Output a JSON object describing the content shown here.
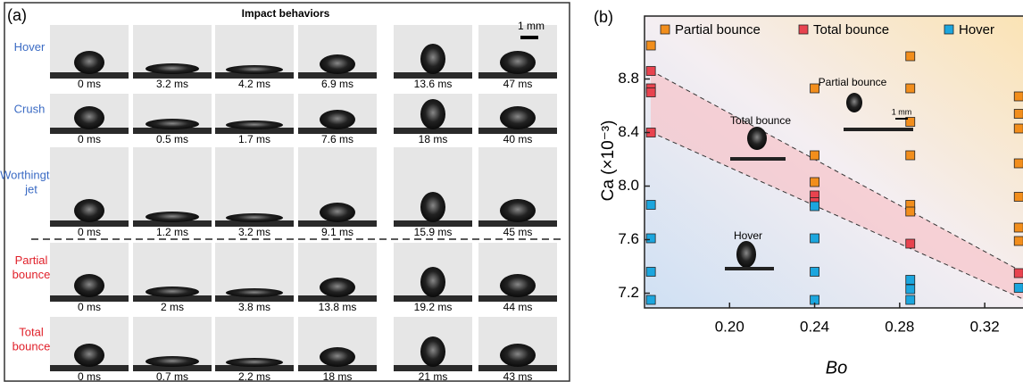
{
  "panel_a": {
    "label": "(a)",
    "title": "Impact behaviors",
    "scale": "1 mm",
    "rows": [
      {
        "label": [
          "Hover"
        ],
        "color": "#3b6bc4",
        "times": [
          "0 ms",
          "3.2 ms",
          "4.2 ms",
          "6.9 ms",
          "13.6 ms",
          "47 ms"
        ]
      },
      {
        "label": [
          "Crush"
        ],
        "color": "#3b6bc4",
        "times": [
          "0 ms",
          "0.5 ms",
          "1.7 ms",
          "7.6 ms",
          "18 ms",
          "40 ms"
        ]
      },
      {
        "label": [
          "Worthington",
          "jet"
        ],
        "color": "#3b6bc4",
        "times": [
          "0 ms",
          "1.2 ms",
          "3.2 ms",
          "9.1 ms",
          "15.9 ms",
          "45 ms"
        ]
      },
      {
        "label": [
          "Partial",
          "bounce"
        ],
        "color": "#e0202a",
        "times": [
          "0 ms",
          "2 ms",
          "3.8 ms",
          "13.8 ms",
          "19.2 ms",
          "44 ms"
        ]
      },
      {
        "label": [
          "Total",
          "bounce"
        ],
        "color": "#e0202a",
        "times": [
          "0 ms",
          "0.7 ms",
          "2.2 ms",
          "18 ms",
          "21 ms",
          "43 ms"
        ]
      }
    ]
  },
  "chart_data": {
    "type": "scatter",
    "label": "(b)",
    "x_label": "Bo",
    "y_label": "Ca (×10⁻³)",
    "xlim": [
      0.16,
      0.338
    ],
    "ylim": [
      7.09,
      9.27
    ],
    "xticks": [
      {
        "value": 0.2,
        "label": "0.20"
      },
      0.24,
      0.28,
      0.32
    ],
    "yticks": [
      7.2,
      7.6,
      {
        "value": 8,
        "label": "8.0"
      },
      8.4,
      8.8
    ],
    "legend": "top",
    "annotations": [
      "Partial bounce",
      "1 mm",
      "Total bounce",
      "Hover"
    ],
    "series": [
      {
        "name": "Partial bounce",
        "color": "#f28e1c",
        "x": [
          0.163,
          0.24,
          0.24,
          0.24,
          0.285,
          0.285,
          0.285,
          0.285,
          0.285,
          0.285,
          0.336,
          0.336,
          0.336,
          0.336,
          0.336,
          0.336,
          0.336
        ],
        "values": [
          9.05,
          8.73,
          8.23,
          8.03,
          8.97,
          8.73,
          8.48,
          8.23,
          7.86,
          7.81,
          8.67,
          8.54,
          8.43,
          8.17,
          7.92,
          7.69,
          7.59
        ]
      },
      {
        "name": "Total bounce",
        "color": "#e8434f",
        "x": [
          0.163,
          0.163,
          0.163,
          0.163,
          0.24,
          0.24,
          0.285,
          0.336
        ],
        "values": [
          8.86,
          8.73,
          8.7,
          8.4,
          7.93,
          7.88,
          7.57,
          7.35
        ]
      },
      {
        "name": "Hover",
        "color": "#1ca6de",
        "x": [
          0.163,
          0.163,
          0.163,
          0.163,
          0.24,
          0.24,
          0.24,
          0.24,
          0.285,
          0.285,
          0.285,
          0.336
        ],
        "values": [
          7.86,
          7.61,
          7.36,
          7.15,
          7.85,
          7.61,
          7.36,
          7.15,
          7.3,
          7.23,
          7.15,
          7.24
        ]
      }
    ]
  }
}
